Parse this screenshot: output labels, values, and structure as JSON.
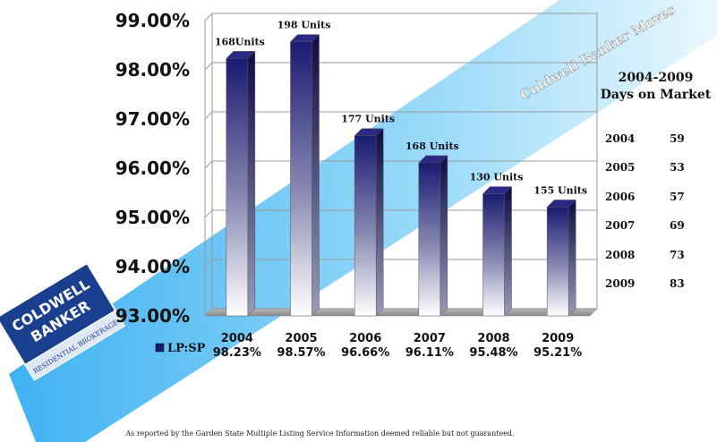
{
  "chart_data": {
    "type": "bar",
    "categories": [
      "2004",
      "2005",
      "2006",
      "2007",
      "2008",
      "2009"
    ],
    "series": [
      {
        "name": "LP:SP",
        "values": [
          98.23,
          98.57,
          96.66,
          96.11,
          95.48,
          95.21
        ]
      }
    ],
    "value_labels": [
      "98.23%",
      "98.57%",
      "96.66%",
      "96.11%",
      "95.48%",
      "95.21%"
    ],
    "units_labels": [
      "168Units",
      "198 Units",
      "177 Units",
      "168 Units",
      "130 Units",
      "155 Units"
    ],
    "y_ticks": [
      "99.00%",
      "98.00%",
      "97.00%",
      "96.00%",
      "95.00%",
      "94.00%",
      "93.00%"
    ],
    "ylim": [
      93,
      99
    ],
    "grid": true,
    "legend_position": "bottom-left",
    "colors": {
      "bar_top": "#1a1a72",
      "bar_bottom": "#ffffff",
      "legend_swatch": "#1a1a72"
    }
  },
  "days_on_market": {
    "title_line1": "2004-2009",
    "title_line2": "Days on Market",
    "rows": [
      {
        "year": "2004",
        "days": "59"
      },
      {
        "year": "2005",
        "days": "53"
      },
      {
        "year": "2006",
        "days": "57"
      },
      {
        "year": "2007",
        "days": "69"
      },
      {
        "year": "2008",
        "days": "73"
      },
      {
        "year": "2009",
        "days": "83"
      }
    ]
  },
  "watermark": {
    "brand_text": "Coldwell Banker Moves",
    "logo_lines": [
      "COLDWELL",
      "BANKER",
      "RESIDENTIAL BROKERAGE"
    ]
  },
  "footnote": "As reported by the Garden State Multiple Listing Service Information deemed reliable but not guaranteed."
}
